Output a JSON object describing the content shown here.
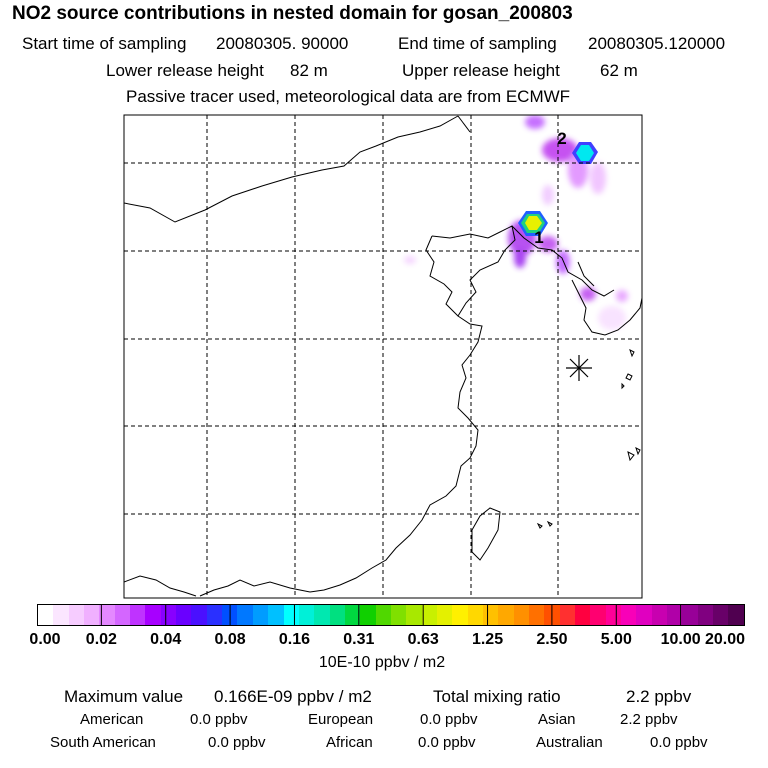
{
  "header": {
    "title": "NO2 source contributions in nested domain for gosan_200803",
    "start_label": "Start time of sampling",
    "start_value": "20080305. 90000",
    "end_label": "End time of sampling",
    "end_value": "20080305.120000",
    "lower_label": "Lower release height",
    "lower_value": "82 m",
    "upper_label": "Upper release height",
    "upper_value": "62 m",
    "note": "Passive tracer used, meteorological data are from ECMWF"
  },
  "map": {
    "source_markers": [
      "1",
      "2"
    ],
    "receptor_icon": "asterisk-receptor-icon"
  },
  "colorbar": {
    "ticks": [
      "0.00",
      "0.02",
      "0.04",
      "0.08",
      "0.16",
      "0.31",
      "0.63",
      "1.25",
      "2.50",
      "5.00",
      "10.00",
      "20.00"
    ],
    "unit": "10E-10 ppbv / m2",
    "colors": [
      "#ffffff",
      "#fbe6ff",
      "#f6ccff",
      "#f0b0ff",
      "#e488ff",
      "#d466ff",
      "#bf33ff",
      "#a700ff",
      "#8800ff",
      "#6a00ff",
      "#4a10ff",
      "#2a30ff",
      "#0050ff",
      "#0078ff",
      "#009cff",
      "#00c0ff",
      "#00ffff",
      "#00f0d8",
      "#00e8b0",
      "#00e080",
      "#00d840",
      "#10d000",
      "#50d800",
      "#80e000",
      "#a8e800",
      "#c8f000",
      "#e4f000",
      "#fff000",
      "#ffd800",
      "#ffc000",
      "#ffa800",
      "#ff9000",
      "#ff7000",
      "#ff5000",
      "#ff3030",
      "#ff0040",
      "#ff0070",
      "#ff0098",
      "#f800b8",
      "#e000c0",
      "#c800b0",
      "#b000a8",
      "#980098",
      "#800080",
      "#680068",
      "#500050"
    ]
  },
  "summary": {
    "max_label": "Maximum value",
    "max_value": "0.166E-09 ppbv / m2",
    "total_label": "Total mixing ratio",
    "total_value": "2.2 ppbv",
    "regions": [
      {
        "name": "American",
        "value": "0.0 ppbv"
      },
      {
        "name": "European",
        "value": "0.0 ppbv"
      },
      {
        "name": "Asian",
        "value": "2.2 ppbv"
      },
      {
        "name": "South American",
        "value": "0.0 ppbv"
      },
      {
        "name": "African",
        "value": "0.0 ppbv"
      },
      {
        "name": "Australian",
        "value": "0.0 ppbv"
      }
    ]
  }
}
